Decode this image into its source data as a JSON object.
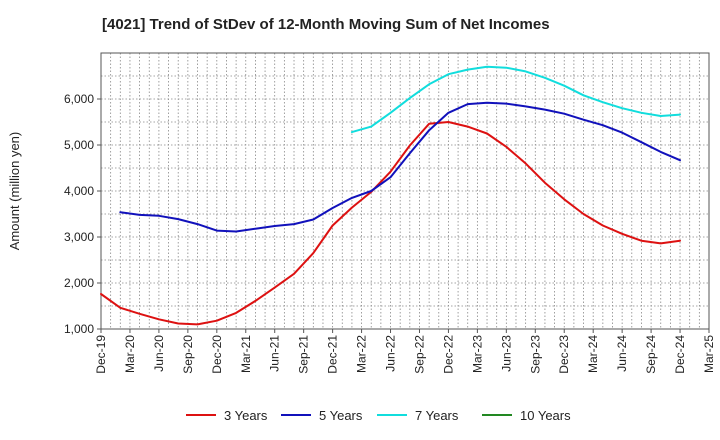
{
  "chart_data": {
    "type": "line",
    "title": "[4021]  Trend of StDev of 12-Month Moving Sum of Net Incomes",
    "ylabel": "Amount (million yen)",
    "xlabel": "",
    "ylim": [
      1000,
      7000
    ],
    "yticks": [
      1000,
      2000,
      3000,
      4000,
      5000,
      6000
    ],
    "ytick_labels": [
      "1,000",
      "2,000",
      "3,000",
      "4,000",
      "5,000",
      "6,000"
    ],
    "x_start": "2019-12",
    "x_end": "2025-03",
    "xtick_labels": [
      "Dec-19",
      "Mar-20",
      "Jun-20",
      "Sep-20",
      "Dec-20",
      "Mar-21",
      "Jun-21",
      "Sep-21",
      "Dec-21",
      "Mar-22",
      "Jun-22",
      "Sep-22",
      "Dec-22",
      "Mar-23",
      "Jun-23",
      "Sep-23",
      "Dec-23",
      "Mar-24",
      "Jun-24",
      "Sep-24",
      "Dec-24",
      "Mar-25"
    ],
    "grid": true,
    "legend_position": "bottom",
    "series": [
      {
        "name": "3 Years",
        "color": "#dd1111",
        "x": [
          "2019-12",
          "2020-02",
          "2020-04",
          "2020-06",
          "2020-08",
          "2020-10",
          "2020-12",
          "2021-02",
          "2021-04",
          "2021-06",
          "2021-08",
          "2021-10",
          "2021-12",
          "2022-02",
          "2022-04",
          "2022-06",
          "2022-08",
          "2022-10",
          "2022-12",
          "2023-02",
          "2023-04",
          "2023-06",
          "2023-08",
          "2023-10",
          "2023-12",
          "2024-02",
          "2024-04",
          "2024-06",
          "2024-08",
          "2024-10",
          "2024-12"
        ],
        "values": [
          1760,
          1460,
          1330,
          1210,
          1120,
          1100,
          1180,
          1350,
          1610,
          1900,
          2200,
          2650,
          3250,
          3640,
          3980,
          4420,
          4990,
          5460,
          5500,
          5400,
          5250,
          4960,
          4600,
          4180,
          3820,
          3500,
          3250,
          3070,
          2920,
          2860,
          2920
        ]
      },
      {
        "name": "5 Years",
        "color": "#1111bb",
        "x": [
          "2020-02",
          "2020-04",
          "2020-06",
          "2020-08",
          "2020-10",
          "2020-12",
          "2021-02",
          "2021-04",
          "2021-06",
          "2021-08",
          "2021-10",
          "2021-12",
          "2022-02",
          "2022-04",
          "2022-06",
          "2022-08",
          "2022-10",
          "2022-12",
          "2023-02",
          "2023-04",
          "2023-06",
          "2023-08",
          "2023-10",
          "2023-12",
          "2024-02",
          "2024-04",
          "2024-06",
          "2024-08",
          "2024-10",
          "2024-12"
        ],
        "values": [
          3540,
          3480,
          3460,
          3390,
          3280,
          3140,
          3120,
          3180,
          3240,
          3280,
          3380,
          3630,
          3850,
          4000,
          4300,
          4820,
          5320,
          5700,
          5890,
          5920,
          5900,
          5840,
          5770,
          5680,
          5550,
          5430,
          5270,
          5060,
          4850,
          4670
        ]
      },
      {
        "name": "7 Years",
        "color": "#11dddd",
        "x": [
          "2022-02",
          "2022-04",
          "2022-06",
          "2022-08",
          "2022-10",
          "2022-12",
          "2023-02",
          "2023-04",
          "2023-06",
          "2023-08",
          "2023-10",
          "2023-12",
          "2024-02",
          "2024-04",
          "2024-06",
          "2024-08",
          "2024-10",
          "2024-12"
        ],
        "values": [
          5280,
          5400,
          5700,
          6020,
          6320,
          6540,
          6640,
          6700,
          6680,
          6600,
          6460,
          6290,
          6080,
          5930,
          5800,
          5700,
          5630,
          5660
        ]
      },
      {
        "name": "10 Years",
        "color": "#228822",
        "x": [],
        "values": []
      }
    ]
  }
}
